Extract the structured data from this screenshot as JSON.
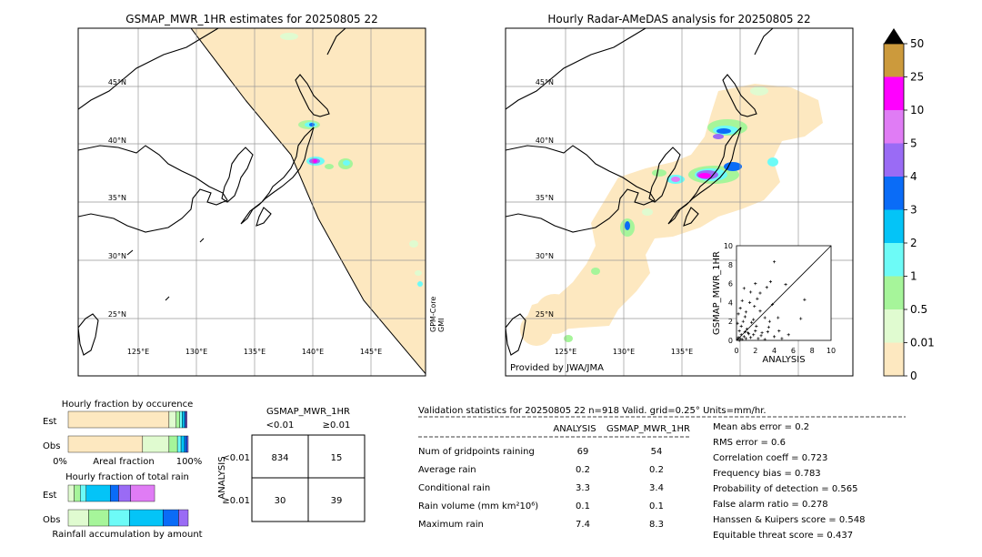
{
  "left_map": {
    "title": "GSMAP_MWR_1HR estimates for 20250805 22",
    "lat_labels": [
      "45°N",
      "40°N",
      "35°N",
      "30°N",
      "25°N"
    ],
    "lon_labels": [
      "125°E",
      "130°E",
      "135°E",
      "140°E",
      "145°E"
    ],
    "sensor_label": "GPM-Core\nGMI"
  },
  "right_map": {
    "title": "Hourly Radar-AMeDAS analysis for 20250805 22",
    "lat_labels": [
      "45°N",
      "40°N",
      "35°N",
      "30°N",
      "25°N"
    ],
    "lon_labels": [
      "125°E",
      "130°E",
      "135°E"
    ],
    "credit": "Provided by JWA/JMA"
  },
  "colorbar": {
    "levels": [
      "0",
      "0.01",
      "0.5",
      "1",
      "2",
      "3",
      "4",
      "5",
      "10",
      "25",
      "50"
    ],
    "colors": [
      "#fde8c0",
      "#e0fbd0",
      "#a6f59a",
      "#6dfbf7",
      "#04c4f7",
      "#0a6cf7",
      "#9a6bf5",
      "#e07cf5",
      "#ff00ff",
      "#cc9a3c"
    ]
  },
  "chart_data": [
    {
      "type": "scatter",
      "title": "",
      "xlabel": "ANALYSIS",
      "ylabel": "GSMAP_MWR_1HR",
      "xlim": [
        0,
        10
      ],
      "ylim": [
        0,
        10
      ],
      "x_ticks": [
        "0",
        "2",
        "4",
        "6",
        "8",
        "10"
      ],
      "y_ticks": [
        "0",
        "2",
        "4",
        "6",
        "8",
        "10"
      ],
      "diagonal": true,
      "points": [
        [
          0.1,
          0.1
        ],
        [
          0.2,
          0.3
        ],
        [
          0.3,
          0.0
        ],
        [
          0.4,
          0.2
        ],
        [
          0.5,
          0.6
        ],
        [
          0.6,
          0.1
        ],
        [
          0.8,
          0.4
        ],
        [
          1.0,
          0.2
        ],
        [
          1.2,
          0.8
        ],
        [
          0.3,
          1.0
        ],
        [
          0.5,
          1.5
        ],
        [
          0.7,
          2.0
        ],
        [
          0.9,
          2.5
        ],
        [
          1.1,
          1.2
        ],
        [
          1.5,
          0.3
        ],
        [
          1.8,
          0.6
        ],
        [
          2.0,
          1.0
        ],
        [
          2.3,
          0.2
        ],
        [
          2.6,
          0.5
        ],
        [
          3.0,
          0.1
        ],
        [
          3.3,
          0.9
        ],
        [
          0.2,
          2.8
        ],
        [
          0.4,
          3.4
        ],
        [
          0.6,
          4.2
        ],
        [
          1.0,
          3.0
        ],
        [
          1.4,
          4.0
        ],
        [
          1.8,
          2.2
        ],
        [
          2.1,
          1.5
        ],
        [
          2.5,
          3.1
        ],
        [
          3.0,
          2.4
        ],
        [
          3.5,
          2.0
        ],
        [
          4.0,
          0.4
        ],
        [
          4.5,
          1.0
        ],
        [
          0.8,
          5.5
        ],
        [
          1.5,
          5.1
        ],
        [
          2.0,
          6.0
        ],
        [
          2.5,
          5.0
        ],
        [
          3.2,
          5.6
        ],
        [
          3.6,
          6.2
        ],
        [
          4.0,
          8.3
        ],
        [
          5.2,
          5.9
        ],
        [
          6.8,
          2.3
        ],
        [
          7.2,
          4.3
        ],
        [
          4.4,
          2.4
        ],
        [
          3.8,
          3.8
        ],
        [
          2.2,
          4.4
        ],
        [
          1.3,
          0.7
        ],
        [
          0.1,
          1.8
        ],
        [
          0.9,
          0.9
        ],
        [
          1.6,
          1.9
        ],
        [
          2.7,
          0.8
        ],
        [
          3.4,
          1.4
        ],
        [
          4.8,
          0.2
        ],
        [
          5.5,
          0.6
        ],
        [
          1.9,
          3.6
        ]
      ]
    },
    {
      "type": "bar",
      "title": "Hourly fraction by occurence",
      "categories": [
        "Est",
        "Obs"
      ],
      "xlabel": "Areal fraction",
      "x_ticks": [
        "0%",
        "100%"
      ],
      "series_colors": [
        "#fde8c0",
        "#e0fbd0",
        "#a6f59a",
        "#6dfbf7",
        "#04c4f7",
        "#0a6cf7",
        "#9a6bf5"
      ],
      "values": [
        [
          0.84,
          0.06,
          0.03,
          0.02,
          0.02,
          0.01,
          0.01
        ],
        [
          0.62,
          0.22,
          0.07,
          0.03,
          0.03,
          0.02,
          0.01
        ]
      ]
    },
    {
      "type": "bar",
      "title": "Hourly fraction of total rain",
      "categories": [
        "Est",
        "Obs"
      ],
      "xlabel": "Rainfall accumulation by amount",
      "series_colors": [
        "#e0fbd0",
        "#a6f59a",
        "#6dfbf7",
        "#04c4f7",
        "#0a6cf7",
        "#9a6bf5",
        "#e07cf5"
      ],
      "values": [
        [
          0.05,
          0.05,
          0.05,
          0.2,
          0.07,
          0.1,
          0.2
        ],
        [
          0.17,
          0.17,
          0.17,
          0.28,
          0.13,
          0.08,
          0.0
        ]
      ]
    },
    {
      "type": "table",
      "title": "GSMAP_MWR_1HR",
      "col_labels": [
        "<0.01",
        "≥0.01"
      ],
      "row_title": "ANALYSIS",
      "row_labels": [
        "<0.01",
        "≥0.01"
      ],
      "cells": [
        [
          "834",
          "15"
        ],
        [
          "30",
          "39"
        ]
      ]
    }
  ],
  "validation": {
    "title": "Validation statistics for 20250805 22  n=918 Valid. grid=0.25° Units=mm/hr.",
    "col_analysis": "ANALYSIS",
    "col_gsmap": "GSMAP_MWR_1HR",
    "rows": [
      {
        "label": "Num of gridpoints raining",
        "a": "69",
        "g": "54"
      },
      {
        "label": "Average rain",
        "a": "0.2",
        "g": "0.2"
      },
      {
        "label": "Conditional rain",
        "a": "3.3",
        "g": "3.4"
      },
      {
        "label": "Rain volume (mm km²10⁶)",
        "a": "0.1",
        "g": "0.1"
      },
      {
        "label": "Maximum rain",
        "a": "7.4",
        "g": "8.3"
      }
    ],
    "scores": [
      "Mean abs error =    0.2",
      "RMS error =    0.6",
      "Correlation coeff =  0.723",
      "Frequency bias =  0.783",
      "Probability of detection =  0.565",
      "False alarm ratio =  0.278",
      "Hanssen & Kuipers score =  0.548",
      "Equitable threat score =  0.437"
    ]
  }
}
